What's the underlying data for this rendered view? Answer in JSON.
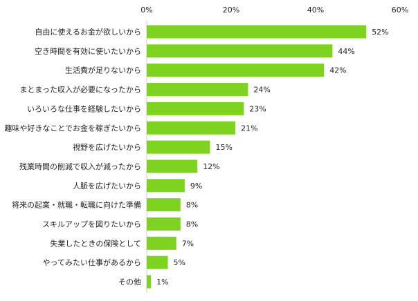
{
  "chart_data": {
    "type": "bar",
    "orientation": "horizontal",
    "title": "",
    "xlabel": "",
    "ylabel": "",
    "xlim": [
      0,
      60
    ],
    "x_ticks": [
      "0%",
      "20%",
      "40%",
      "60%"
    ],
    "x_tick_values": [
      0,
      20,
      40,
      60
    ],
    "grid": false,
    "bar_color": "#7ed321",
    "categories": [
      "自由に使えるお金が欲しいから",
      "空き時間を有効に使いたいから",
      "生活費が足りないから",
      "まとまった収入が必要になったから",
      "いろいろな仕事を経験したいから",
      "趣味や好きなことでお金を稼ぎたいから",
      "視野を広げたいから",
      "残業時間の削減で収入が減ったから",
      "人脈を広げたいから",
      "将来の起業・就職・転職に向けた準備",
      "スキルアップを図りたいから",
      "失業したときの保険として",
      "やってみたい仕事があるから",
      "その他"
    ],
    "values": [
      52,
      44,
      42,
      24,
      23,
      21,
      15,
      12,
      9,
      8,
      8,
      7,
      5,
      1
    ],
    "value_labels": [
      "52%",
      "44%",
      "42%",
      "24%",
      "23%",
      "21%",
      "15%",
      "12%",
      "9%",
      "8%",
      "8%",
      "7%",
      "5%",
      "1%"
    ]
  }
}
